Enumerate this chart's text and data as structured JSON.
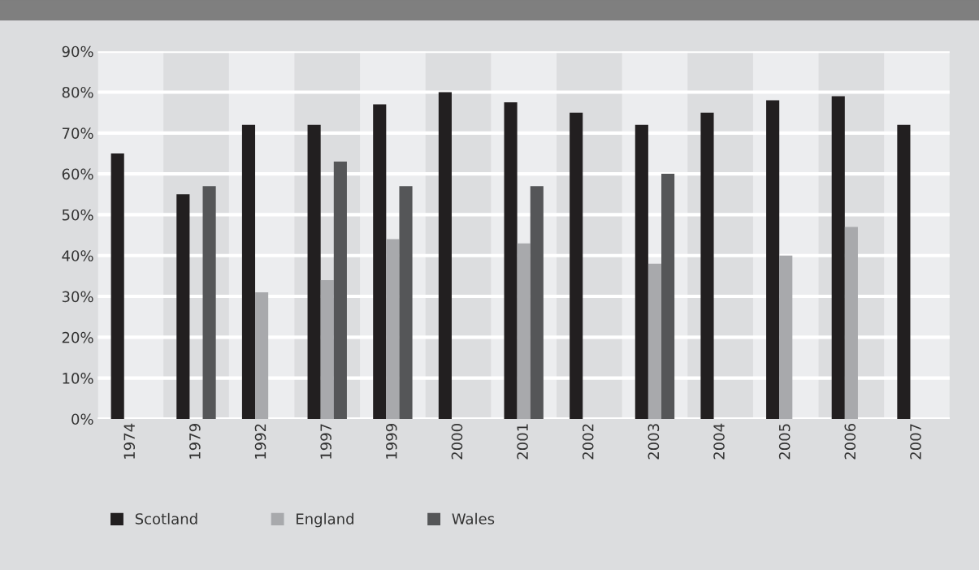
{
  "chart_data": {
    "type": "bar",
    "categories": [
      "1974",
      "1979",
      "1992",
      "1997",
      "1999",
      "2000",
      "2001",
      "2002",
      "2003",
      "2004",
      "2005",
      "2006",
      "2007"
    ],
    "series": [
      {
        "name": "Scotland",
        "color": "#221f20",
        "values": [
          65,
          55,
          72,
          72,
          77,
          80,
          77.5,
          75,
          72,
          75,
          78,
          79,
          72
        ]
      },
      {
        "name": "England",
        "color": "#a8a9ac",
        "values": [
          null,
          null,
          31,
          34,
          44,
          null,
          43,
          null,
          38,
          null,
          40,
          47,
          null
        ]
      },
      {
        "name": "Wales",
        "color": "#555658",
        "values": [
          null,
          57,
          null,
          63,
          57,
          null,
          57,
          null,
          60,
          null,
          null,
          null,
          null
        ]
      }
    ],
    "ylim": [
      0,
      90
    ],
    "yticks": [
      {
        "value": 0,
        "label": "0%"
      },
      {
        "value": 10,
        "label": "10%"
      },
      {
        "value": 20,
        "label": "20%"
      },
      {
        "value": 30,
        "label": "30%"
      },
      {
        "value": 40,
        "label": "40%"
      },
      {
        "value": 50,
        "label": "50%"
      },
      {
        "value": 60,
        "label": "60%"
      },
      {
        "value": 70,
        "label": "70%"
      },
      {
        "value": 80,
        "label": "80%"
      },
      {
        "value": 90,
        "label": "90%"
      }
    ],
    "grid": "y",
    "legend": "bottom left"
  }
}
